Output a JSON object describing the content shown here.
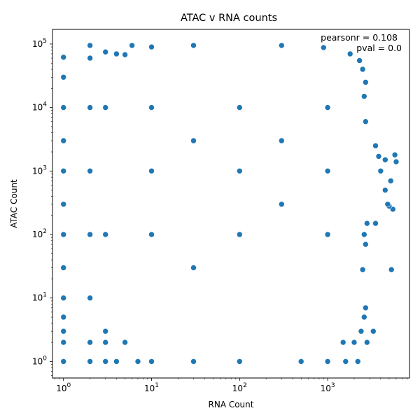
{
  "chart_data": {
    "type": "scatter",
    "title": "ATAC v RNA counts",
    "xlabel": "RNA Count",
    "ylabel": "ATAC Count",
    "xscale": "log",
    "yscale": "log",
    "xlim": [
      0.75,
      8500
    ],
    "ylim": [
      0.55,
      170000
    ],
    "xticks": [
      {
        "value": 1,
        "base": "10",
        "exp": "0"
      },
      {
        "value": 10,
        "base": "10",
        "exp": "1"
      },
      {
        "value": 100,
        "base": "10",
        "exp": "2"
      },
      {
        "value": 1000,
        "base": "10",
        "exp": "3"
      }
    ],
    "yticks": [
      {
        "value": 1,
        "base": "10",
        "exp": "0"
      },
      {
        "value": 10,
        "base": "10",
        "exp": "1"
      },
      {
        "value": 100,
        "base": "10",
        "exp": "2"
      },
      {
        "value": 1000,
        "base": "10",
        "exp": "3"
      },
      {
        "value": 10000,
        "base": "10",
        "exp": "4"
      },
      {
        "value": 100000,
        "base": "10",
        "exp": "5"
      }
    ],
    "grid": false,
    "legend": "none",
    "marker_color": "#1f77b4",
    "marker_edge_color": "#ffffff",
    "annotations": [
      "pearsonr = 0.108",
      "pval = 0.0"
    ],
    "points": [
      {
        "x": 2,
        "y": 95000
      },
      {
        "x": 6,
        "y": 95000
      },
      {
        "x": 1,
        "y": 62000
      },
      {
        "x": 2,
        "y": 60000
      },
      {
        "x": 3,
        "y": 75000
      },
      {
        "x": 4,
        "y": 70000
      },
      {
        "x": 5,
        "y": 68000
      },
      {
        "x": 4,
        "y": 1
      },
      {
        "x": 5,
        "y": 2
      },
      {
        "x": 1,
        "y": 1
      },
      {
        "x": 1,
        "y": 2
      },
      {
        "x": 1,
        "y": 3
      },
      {
        "x": 1,
        "y": 5
      },
      {
        "x": 1,
        "y": 10
      },
      {
        "x": 1,
        "y": 30
      },
      {
        "x": 1,
        "y": 100
      },
      {
        "x": 1,
        "y": 300
      },
      {
        "x": 1,
        "y": 1000
      },
      {
        "x": 1,
        "y": 3000
      },
      {
        "x": 1,
        "y": 10000
      },
      {
        "x": 1,
        "y": 30000
      },
      {
        "x": 2,
        "y": 1
      },
      {
        "x": 2,
        "y": 2
      },
      {
        "x": 2,
        "y": 10
      },
      {
        "x": 2,
        "y": 100
      },
      {
        "x": 2,
        "y": 1000
      },
      {
        "x": 2,
        "y": 10000
      },
      {
        "x": 3,
        "y": 1
      },
      {
        "x": 3,
        "y": 2
      },
      {
        "x": 3,
        "y": 3
      },
      {
        "x": 3,
        "y": 100
      },
      {
        "x": 3,
        "y": 10000
      },
      {
        "x": 2800,
        "y": 2
      },
      {
        "x": 2400,
        "y": 3
      },
      {
        "x": 3300,
        "y": 3
      },
      {
        "x": 2600,
        "y": 5
      },
      {
        "x": 2700,
        "y": 7
      },
      {
        "x": 2500,
        "y": 28
      },
      {
        "x": 5300,
        "y": 28
      },
      {
        "x": 2700,
        "y": 70
      },
      {
        "x": 2600,
        "y": 100
      },
      {
        "x": 2800,
        "y": 150
      },
      {
        "x": 3500,
        "y": 150
      },
      {
        "x": 5500,
        "y": 250
      },
      {
        "x": 5000,
        "y": 280
      },
      {
        "x": 4800,
        "y": 300
      },
      {
        "x": 4500,
        "y": 500
      },
      {
        "x": 5200,
        "y": 700
      },
      {
        "x": 4000,
        "y": 1000
      },
      {
        "x": 6000,
        "y": 1400
      },
      {
        "x": 5800,
        "y": 1800
      },
      {
        "x": 4500,
        "y": 1500
      },
      {
        "x": 3800,
        "y": 1700
      },
      {
        "x": 3500,
        "y": 2500
      },
      {
        "x": 2700,
        "y": 6000
      },
      {
        "x": 2600,
        "y": 15000
      },
      {
        "x": 2700,
        "y": 25000
      },
      {
        "x": 2500,
        "y": 40000
      },
      {
        "x": 2300,
        "y": 55000
      },
      {
        "x": 1800,
        "y": 70000
      },
      {
        "x": 900,
        "y": 88000
      },
      {
        "x": 300,
        "y": 95000
      },
      {
        "x": 30,
        "y": 95000
      },
      {
        "x": 10,
        "y": 90000
      },
      {
        "x": 1500,
        "y": 2
      },
      {
        "x": 2000,
        "y": 2
      },
      {
        "x": 2200,
        "y": 1
      },
      {
        "x": 1600,
        "y": 1
      },
      {
        "x": 1000,
        "y": 1
      },
      {
        "x": 500,
        "y": 1
      },
      {
        "x": 100,
        "y": 1
      },
      {
        "x": 30,
        "y": 1
      },
      {
        "x": 10,
        "y": 1
      },
      {
        "x": 7,
        "y": 1
      },
      {
        "x": 10,
        "y": 100
      },
      {
        "x": 100,
        "y": 100
      },
      {
        "x": 1000,
        "y": 100
      },
      {
        "x": 10,
        "y": 1000
      },
      {
        "x": 100,
        "y": 1000
      },
      {
        "x": 1000,
        "y": 1000
      },
      {
        "x": 10,
        "y": 10000
      },
      {
        "x": 100,
        "y": 10000
      },
      {
        "x": 1000,
        "y": 10000
      },
      {
        "x": 30,
        "y": 30
      },
      {
        "x": 300,
        "y": 300
      },
      {
        "x": 300,
        "y": 3000
      },
      {
        "x": 30,
        "y": 3000
      }
    ]
  }
}
